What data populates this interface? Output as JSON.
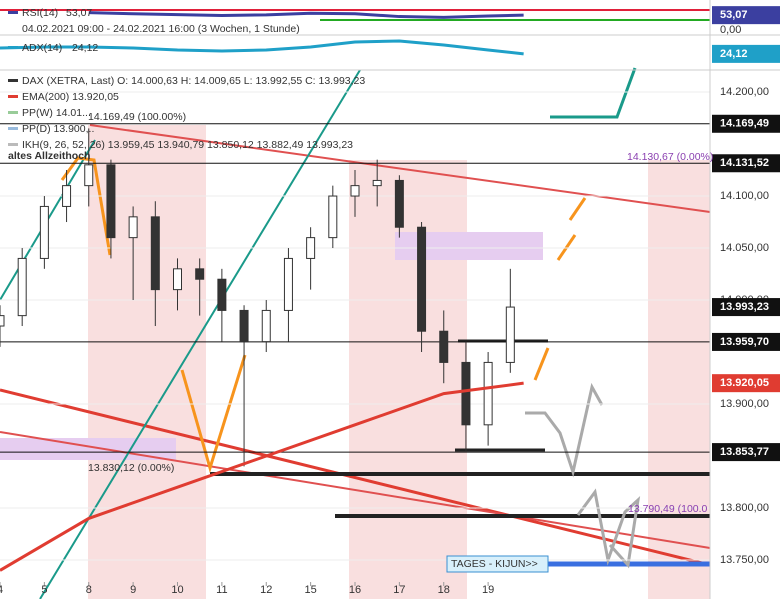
{
  "chart_data": {
    "type": "candlestick",
    "header": [
      "04.02.2021 09:00 - 24.02.2021 16:00  (3 Wochen, 1 Stunde)"
    ],
    "legend": [
      {
        "text": "DAX (XETRA, Last)  O: 14.000,63  H: 14.009,65  L: 13.992,55  C: 13.993,23",
        "color": "#333"
      },
      {
        "text": "EMA(200)  13.920,05",
        "color": "#e03c31"
      },
      {
        "text": "PP(W)  14.01...",
        "color": "#9c9"
      },
      {
        "text": "PP(D)  13.900,..",
        "color": "#9bd"
      },
      {
        "text": "IKH(9, 26, 52, 26)  13.959,45  13.940,79  13.850,12  13.882,49  13.993,23",
        "color": "#bbb"
      }
    ],
    "annotations": [
      "altes Allzeithoch",
      "14.169,49 (100.00%)",
      "13.830,12 (0.00%)",
      "14.130,67 (0.00%)",
      "13.790,49 (100.0",
      "TAGES - KIJUN>>"
    ],
    "xlim": [
      0,
      16
    ],
    "xticks": [
      {
        "value": 0,
        "label": "4"
      },
      {
        "value": 1,
        "label": "5"
      },
      {
        "value": 2,
        "label": "8"
      },
      {
        "value": 3,
        "label": "9"
      },
      {
        "value": 4,
        "label": "10"
      },
      {
        "value": 5,
        "label": "11"
      },
      {
        "value": 6,
        "label": "12"
      },
      {
        "value": 7,
        "label": "15"
      },
      {
        "value": 8,
        "label": "16"
      },
      {
        "value": 9,
        "label": "17"
      },
      {
        "value": 10,
        "label": "18"
      },
      {
        "value": 11,
        "label": "19"
      }
    ],
    "ylim": [
      13712.5,
      14221.2
    ],
    "yticks": [
      {
        "value": 13750,
        "label": "13.750,00"
      },
      {
        "value": 13800,
        "label": "13.800,00"
      },
      {
        "value": 13900,
        "label": "13.900,00"
      },
      {
        "value": 14000,
        "label": "14.000,00"
      },
      {
        "value": 14050,
        "label": "14.050,00"
      },
      {
        "value": 14100,
        "label": "14.100,00"
      },
      {
        "value": 14200,
        "label": "14.200,00"
      }
    ],
    "x": [
      0,
      0.5,
      1,
      1.5,
      2,
      2.5,
      3,
      3.5,
      4,
      4.5,
      5,
      5.5,
      6,
      6.5,
      7,
      7.5,
      8,
      8.5,
      9,
      9.5,
      10,
      10.5,
      11,
      11.5
    ],
    "open": [
      13975,
      13985,
      14040,
      14090,
      14110,
      14130,
      14060,
      14080,
      14010,
      14030,
      14020,
      13990,
      13960,
      13990,
      14040,
      14060,
      14100,
      14110,
      14115,
      14070,
      13970,
      13940,
      13880,
      13940
    ],
    "high": [
      13995,
      14050,
      14100,
      14125,
      14165,
      14135,
      14090,
      14095,
      14040,
      14040,
      14030,
      13995,
      14000,
      14050,
      14070,
      14110,
      14125,
      14135,
      14120,
      14075,
      13990,
      13960,
      13950,
      14030
    ],
    "low": [
      13955,
      13975,
      14030,
      14075,
      14090,
      14040,
      14000,
      13975,
      13990,
      13985,
      13960,
      13840,
      13950,
      13960,
      14010,
      14050,
      14080,
      14090,
      14060,
      13950,
      13920,
      13855,
      13860,
      13930
    ],
    "close": [
      13985,
      14040,
      14090,
      14110,
      14130,
      14060,
      14080,
      14010,
      14030,
      14020,
      13990,
      13960,
      13990,
      14040,
      14060,
      14100,
      14110,
      14115,
      14070,
      13970,
      13940,
      13880,
      13940,
      13993.23
    ],
    "ema": {
      "name": "EMA(200)",
      "color": "#e03c31",
      "x": [
        0,
        2,
        4,
        6,
        8,
        10,
        11.8
      ],
      "values": [
        13740,
        13790,
        13820,
        13850,
        13880,
        13910,
        13920.05
      ]
    },
    "levels": [
      {
        "value": 14169.49,
        "label": "14.169,49",
        "color": "#111"
      },
      {
        "value": 14131.52,
        "label": "14.131,52",
        "color": "#111"
      },
      {
        "value": 13993.23,
        "label": "13.993,23",
        "color": "#111"
      },
      {
        "value": 13959.7,
        "label": "13.959,70",
        "color": "#111"
      },
      {
        "value": 13920.05,
        "label": "13.920,05",
        "color": "#e03c31"
      },
      {
        "value": 13853.77,
        "label": "13.853,77",
        "color": "#111"
      }
    ],
    "rsi": {
      "name": "RSI(14)",
      "label": "53,07",
      "last": 53.07,
      "color": "#3b3fa0",
      "ylim": [
        0,
        100
      ],
      "x": [
        2,
        3,
        4,
        5,
        6,
        7,
        8,
        9,
        10,
        11,
        11.8
      ],
      "values": [
        62,
        58,
        55,
        52,
        54,
        60,
        58,
        48,
        45,
        50,
        53.07
      ]
    },
    "rsi_zero": {
      "label": "0,00",
      "value": 0
    },
    "adx": {
      "name": "ADX(14)",
      "label": "24,12",
      "last": 24.12,
      "color": "#1fa0c8",
      "ylim": [
        10,
        40
      ],
      "x": [
        0,
        1,
        2,
        3,
        4,
        5,
        6,
        7,
        8,
        9,
        10,
        11,
        11.8
      ],
      "values": [
        30,
        31,
        31,
        30,
        28,
        27,
        28,
        31,
        36,
        37,
        33,
        28,
        24.12
      ]
    }
  }
}
